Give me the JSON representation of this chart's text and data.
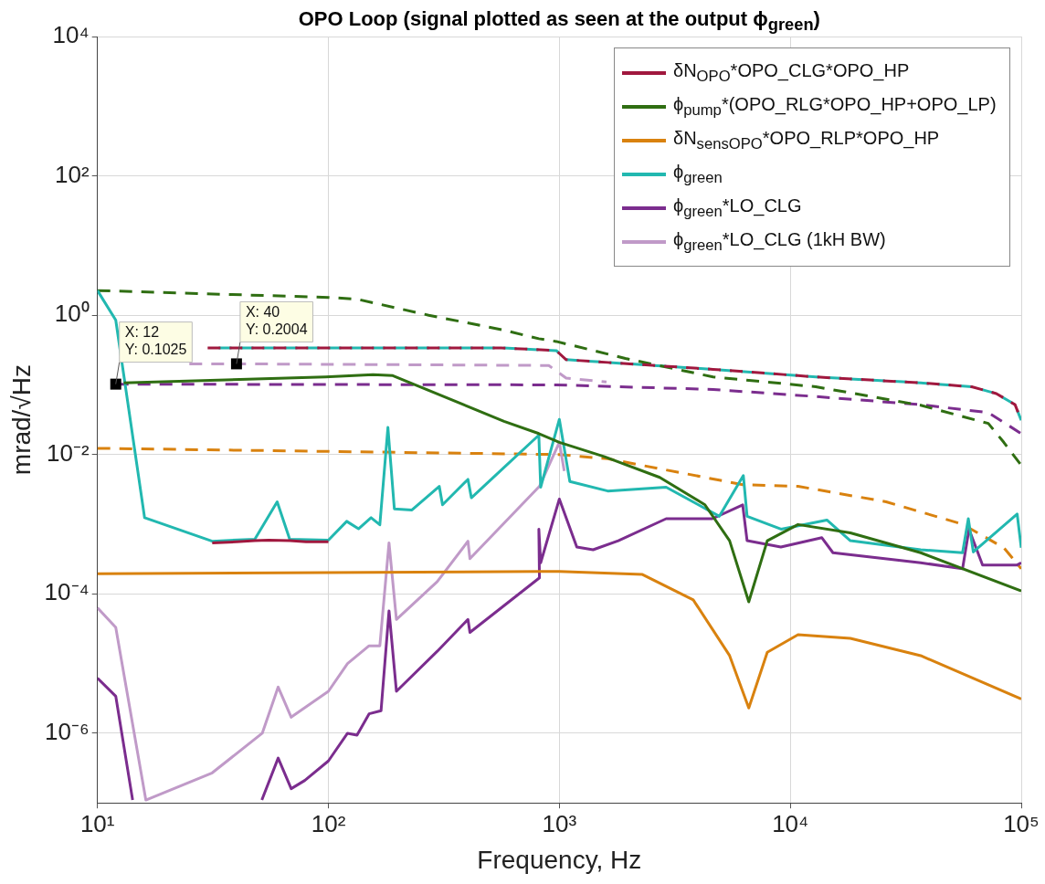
{
  "chart_data": {
    "type": "line",
    "title": "OPO Loop (signal plotted as seen at the output ϕ$_{green}$)",
    "xlabel": "Frequency, Hz",
    "ylabel": "mrad/√Hz",
    "log": "xy",
    "grid": true,
    "legend": "top right",
    "marker": "none",
    "xlim": [
      10,
      100000
    ],
    "xticks": [
      {
        "value": 10,
        "label": "10¹"
      },
      {
        "value": 100,
        "label": "10²"
      },
      {
        "value": 1000,
        "label": "10³"
      },
      {
        "value": 10000,
        "label": "10⁴"
      },
      {
        "value": 100000,
        "label": "10⁵"
      }
    ],
    "ylim": [
      1e-07,
      10000
    ],
    "yticks": [
      {
        "value": 1e-06,
        "label": "10⁻⁶"
      },
      {
        "value": 0.0001,
        "label": "10⁻⁴"
      },
      {
        "value": 0.01,
        "label": "10⁻²"
      },
      {
        "value": 1,
        "label": "10⁰"
      },
      {
        "value": 100,
        "label": "10²"
      },
      {
        "value": 10000,
        "label": "10⁴"
      }
    ],
    "annotations": [
      {
        "text": "X: 12\nY: 0.1025",
        "x": 12,
        "y": 0.1025
      },
      {
        "text": "X: 40\nY: 0.2004",
        "x": 40,
        "y": 0.2004
      }
    ],
    "series": [
      {
        "name": "δN$_{OPO}$*OPO_CLG*OPO_HP",
        "color": "#a0183e",
        "line_style": "solid",
        "x": [
          31.4,
          40,
          48,
          55,
          68,
          80,
          100
        ],
        "values": [
          0.00054,
          0.00056,
          0.00058,
          0.00059,
          0.00058,
          0.00056,
          0.00056
        ]
      },
      {
        "name": "ϕ$_{pump}$*(OPO_RLG*OPO_HP+OPO_LP)",
        "color": "#2f6e12",
        "line_style": "solid",
        "x": [
          13,
          97,
          156,
          190,
          576,
          815,
          1000,
          1570,
          2720,
          4270,
          5460,
          6610,
          7950,
          10800,
          18200,
          36700,
          100000
        ],
        "values": [
          0.107,
          0.13,
          0.14,
          0.136,
          0.03,
          0.02,
          0.015,
          0.0093,
          0.0047,
          0.0019,
          0.00058,
          7.7e-05,
          0.00058,
          0.00099,
          0.00075,
          0.00039,
          0.00011
        ]
      },
      {
        "name": "δN$_{sensOPO}$*OPO_RLP*OPO_HP",
        "color": "#d9820f",
        "line_style": "solid",
        "x": [
          10,
          830,
          1000,
          2290,
          3800,
          5460,
          6610,
          7950,
          10800,
          18200,
          36700,
          100000
        ],
        "values": [
          0.000195,
          0.00021,
          0.00021,
          0.00019,
          8.2e-05,
          1.3e-05,
          2.3e-06,
          1.45e-05,
          2.6e-05,
          2.3e-05,
          1.3e-05,
          3.1e-06
        ]
      },
      {
        "name": "ϕ$_{green}$",
        "color": "#22b8b0",
        "line_style": "solid",
        "x": [
          10,
          12,
          16,
          31.4,
          48,
          60,
          68,
          100,
          120,
          135,
          153,
          167,
          181,
          193,
          230,
          302,
          312,
          402,
          416,
          815,
          830,
          1000,
          1110,
          1620,
          2900,
          4000,
          4930,
          6260,
          6500,
          9120,
          14400,
          18200,
          36700,
          55700,
          59000,
          62000,
          96000,
          100000
        ],
        "values": [
          2.26,
          0.85,
          0.00124,
          0.00057,
          0.00061,
          0.0021,
          0.00061,
          0.00059,
          0.0011,
          0.00086,
          0.00124,
          0.00098,
          0.0245,
          0.00166,
          0.0016,
          0.0035,
          0.0019,
          0.0044,
          0.0024,
          0.019,
          0.0034,
          0.032,
          0.0041,
          0.003,
          0.0034,
          0.0019,
          0.0013,
          0.005,
          0.0013,
          0.00085,
          0.00115,
          0.00058,
          0.00043,
          0.00039,
          0.0012,
          0.0004,
          0.0014,
          0.00046
        ]
      },
      {
        "name": "ϕ$_{green}$*LO_CLG",
        "color": "#7b2d8e",
        "line_style": "solid",
        "x": [
          10,
          12,
          14.2,
          30,
          51.5,
          60.6,
          69,
          79,
          100,
          121,
          133,
          150,
          169,
          183,
          197,
          296,
          402,
          410,
          820,
          815,
          830,
          1000,
          1190,
          1400,
          1800,
          2900,
          4600,
          6220,
          6500,
          9100,
          13700,
          15300,
          36700,
          55700,
          59400,
          68000,
          96000,
          100000
        ],
        "values": [
          6.2e-06,
          3.4e-06,
          1.1e-07,
          null,
          1.1e-07,
          4.4e-07,
          1.6e-07,
          2.1e-07,
          4e-07,
          1e-06,
          9.4e-07,
          1.9e-06,
          2.1e-06,
          5.7e-05,
          4e-06,
          1.5e-05,
          4.3e-05,
          2.8e-05,
          0.00017,
          0.00085,
          0.00028,
          0.0023,
          0.00047,
          0.00043,
          0.00058,
          0.0012,
          0.0012,
          0.0019,
          0.00058,
          0.00047,
          0.00064,
          0.00039,
          0.00028,
          0.00023,
          0.00085,
          0.00026,
          0.00026,
          0.00028
        ]
      },
      {
        "name": "ϕ$_{green}$*LO_CLG (1kH BW)",
        "color": "#c09ac8",
        "line_style": "solid",
        "x": [
          10,
          12,
          16.2,
          31.4,
          51.7,
          60.6,
          69,
          100,
          121,
          150,
          167,
          183,
          197,
          296,
          402,
          410,
          820,
          1000,
          1050
        ],
        "values": [
          6.3e-05,
          3.3e-05,
          1.1e-07,
          2.7e-07,
          1e-06,
          4.6e-06,
          1.7e-06,
          4e-06,
          1e-05,
          1.8e-05,
          1.8e-05,
          0.00054,
          4.3e-05,
          0.00015,
          0.00057,
          0.00032,
          0.0035,
          0.015,
          0.0058
        ]
      },
      {
        "color": "#a0183e",
        "line_style": "dashed",
        "x": [
          30,
          560,
          970,
          1070,
          1620,
          4630,
          12900,
          36700,
          61000,
          78000,
          94000,
          100000
        ],
        "values": [
          0.34,
          0.34,
          0.31,
          0.23,
          0.21,
          0.167,
          0.13,
          0.107,
          0.094,
          0.075,
          0.052,
          0.031
        ]
      },
      {
        "color": "#2f6e12",
        "line_style": "dashed",
        "x": [
          10,
          100,
          133,
          272,
          576,
          815,
          970,
          1930,
          4630,
          12900,
          36700,
          72000,
          84000,
          100000
        ],
        "values": [
          2.26,
          1.8,
          1.7,
          1.0,
          0.61,
          0.46,
          0.42,
          0.24,
          0.13,
          0.094,
          0.051,
          0.028,
          0.015,
          0.007
        ]
      },
      {
        "color": "#d9820f",
        "line_style": "dashed",
        "x": [
          10,
          1000,
          1620,
          6220,
          10800,
          26000,
          55700,
          84000,
          100000
        ],
        "values": [
          0.0123,
          0.01,
          0.0087,
          0.0037,
          0.0035,
          0.0021,
          0.001,
          0.00046,
          0.00023
        ]
      },
      {
        "color": "#22b8b0",
        "line_style": "dashed",
        "x": [
          33.5,
          560,
          970,
          1070,
          1620,
          4630,
          12900,
          36700,
          61000,
          78000,
          94000,
          100000
        ],
        "values": [
          0.34,
          0.34,
          0.31,
          0.23,
          0.21,
          0.167,
          0.13,
          0.107,
          0.094,
          0.075,
          0.052,
          0.031
        ]
      },
      {
        "color": "#7b2d8e",
        "line_style": "dashed",
        "x": [
          12,
          970,
          4630,
          12900,
          36700,
          72000,
          100000
        ],
        "values": [
          0.1025,
          0.1,
          0.086,
          0.068,
          0.052,
          0.04,
          0.02
        ]
      },
      {
        "color": "#c09ac8",
        "line_style": "dashed",
        "x": [
          25,
          40,
          900,
          1070,
          1600
        ],
        "values": [
          0.2,
          0.2004,
          0.19,
          0.125,
          0.11
        ]
      }
    ]
  }
}
